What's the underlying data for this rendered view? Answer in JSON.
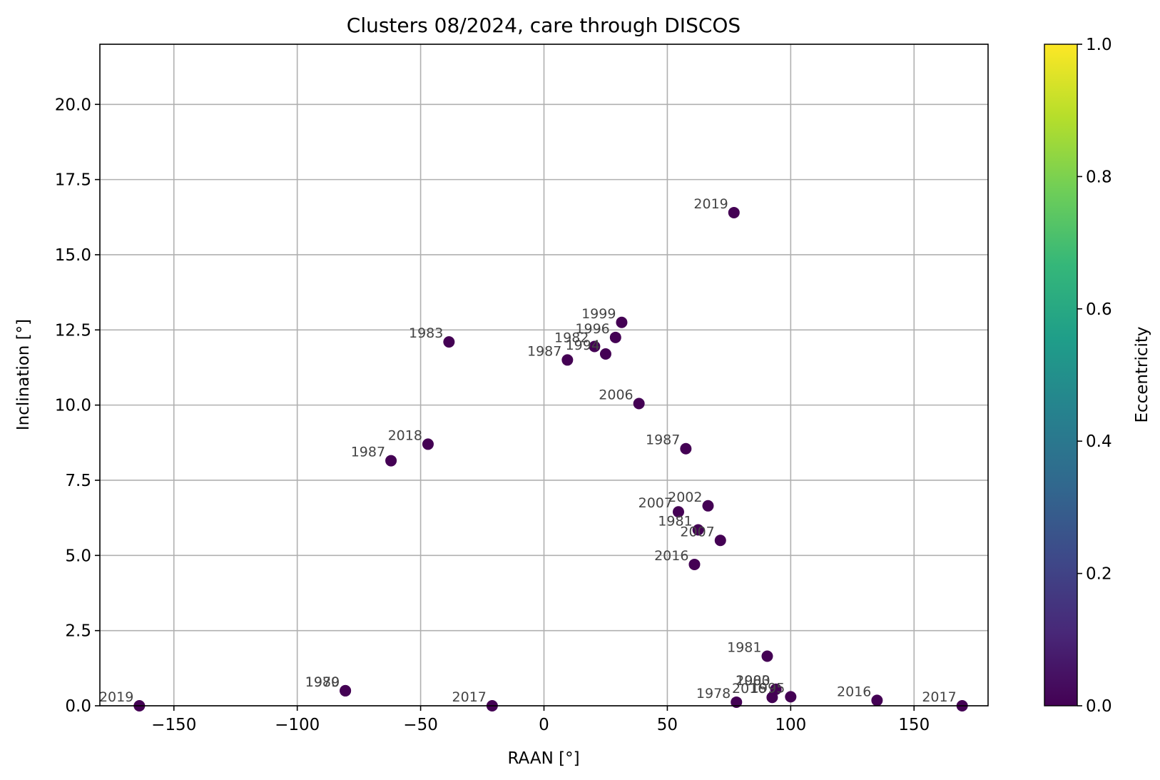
{
  "chart_data": {
    "type": "scatter",
    "title": "Clusters 08/2024, care through DISCOS",
    "xlabel": "RAAN [°]",
    "ylabel": "Inclination [°]",
    "xlim": [
      -180,
      180
    ],
    "ylim": [
      0,
      22
    ],
    "xticks": [
      -150,
      -100,
      -50,
      0,
      50,
      100,
      150
    ],
    "xtick_labels": [
      "−150",
      "−100",
      "−50",
      "0",
      "50",
      "100",
      "150"
    ],
    "yticks": [
      0,
      2.5,
      5,
      7.5,
      10,
      12.5,
      15,
      17.5,
      20
    ],
    "ytick_labels": [
      "0.0",
      "2.5",
      "5.0",
      "7.5",
      "10.0",
      "12.5",
      "15.0",
      "17.5",
      "20.0"
    ],
    "grid": true,
    "colorbar": {
      "label": "Eccentricity",
      "colormap": "viridis",
      "range": [
        0,
        1
      ],
      "ticks": [
        0,
        0.2,
        0.4,
        0.6,
        0.8,
        1.0
      ],
      "tick_labels": [
        "0.0",
        "0.2",
        "0.4",
        "0.6",
        "0.8",
        "1.0"
      ],
      "stops": [
        "#440154",
        "#482878",
        "#3e4989",
        "#31688e",
        "#26828e",
        "#1f9e89",
        "#35b779",
        "#6ece58",
        "#b5de2b",
        "#fde725"
      ]
    },
    "marker_color": "#440154",
    "points": [
      {
        "x": 77,
        "y": 16.4,
        "label": "2019"
      },
      {
        "x": 31.5,
        "y": 12.75,
        "label": "1999"
      },
      {
        "x": 29,
        "y": 12.25,
        "label": "1996"
      },
      {
        "x": 20.5,
        "y": 11.95,
        "label": "1982"
      },
      {
        "x": 25,
        "y": 11.7,
        "label": "1994"
      },
      {
        "x": 9.5,
        "y": 11.5,
        "label": "1987"
      },
      {
        "x": -38.5,
        "y": 12.1,
        "label": "1983"
      },
      {
        "x": 38.5,
        "y": 10.05,
        "label": "2006"
      },
      {
        "x": -47,
        "y": 8.7,
        "label": "2018"
      },
      {
        "x": -62,
        "y": 8.15,
        "label": "1987"
      },
      {
        "x": 57.5,
        "y": 8.55,
        "label": "1987"
      },
      {
        "x": 66.5,
        "y": 6.65,
        "label": "2002"
      },
      {
        "x": 54.5,
        "y": 6.45,
        "label": "2007"
      },
      {
        "x": 62.5,
        "y": 5.85,
        "label": "1981"
      },
      {
        "x": 71.5,
        "y": 5.5,
        "label": "2007"
      },
      {
        "x": 61,
        "y": 4.7,
        "label": "2016"
      },
      {
        "x": 90.5,
        "y": 1.65,
        "label": "1981"
      },
      {
        "x": -80.5,
        "y": 0.5,
        "label": "1979"
      },
      {
        "x": -80.5,
        "y": 0.5,
        "label": "1980"
      },
      {
        "x": -164,
        "y": 0.0,
        "label": "2019"
      },
      {
        "x": -21,
        "y": 0.0,
        "label": "2017"
      },
      {
        "x": 78,
        "y": 0.12,
        "label": "1978"
      },
      {
        "x": 92.5,
        "y": 0.28,
        "label": "2016"
      },
      {
        "x": 94,
        "y": 0.55,
        "label": "1983"
      },
      {
        "x": 94,
        "y": 0.55,
        "label": "2000"
      },
      {
        "x": 100,
        "y": 0.3,
        "label": "1995"
      },
      {
        "x": 135,
        "y": 0.18,
        "label": "2016"
      },
      {
        "x": 169.5,
        "y": 0.0,
        "label": "2017"
      }
    ]
  }
}
